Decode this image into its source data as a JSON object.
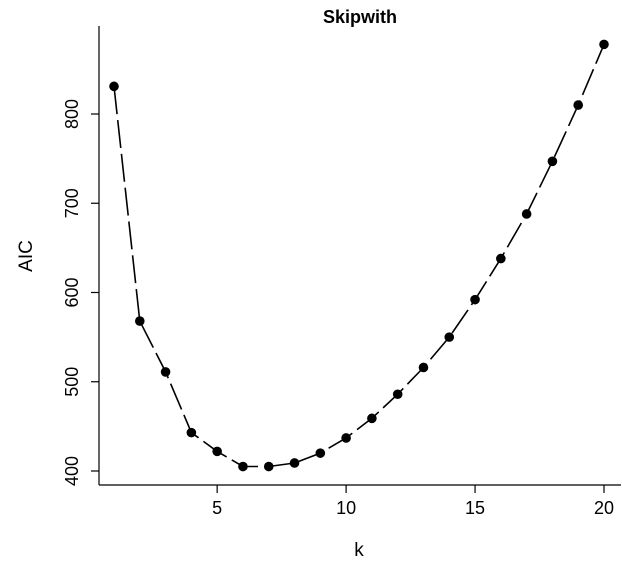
{
  "chart_data": {
    "type": "line",
    "title": "Skipwith",
    "xlabel": "k",
    "ylabel": "AIC",
    "xlim": [
      0.5,
      20.7
    ],
    "ylim": [
      390,
      890
    ],
    "xticks": [
      5,
      10,
      15,
      20
    ],
    "yticks": [
      400,
      500,
      600,
      700,
      800
    ],
    "x": [
      1,
      2,
      3,
      4,
      5,
      6,
      7,
      8,
      9,
      10,
      11,
      12,
      13,
      14,
      15,
      16,
      17,
      18,
      19,
      20
    ],
    "series": [
      {
        "values": [
          831,
          568,
          511,
          443,
          422,
          405,
          405,
          409,
          420,
          437,
          459,
          486,
          516,
          550,
          592,
          638,
          688,
          747,
          810,
          878
        ]
      }
    ],
    "grid": false,
    "legend": "none"
  }
}
